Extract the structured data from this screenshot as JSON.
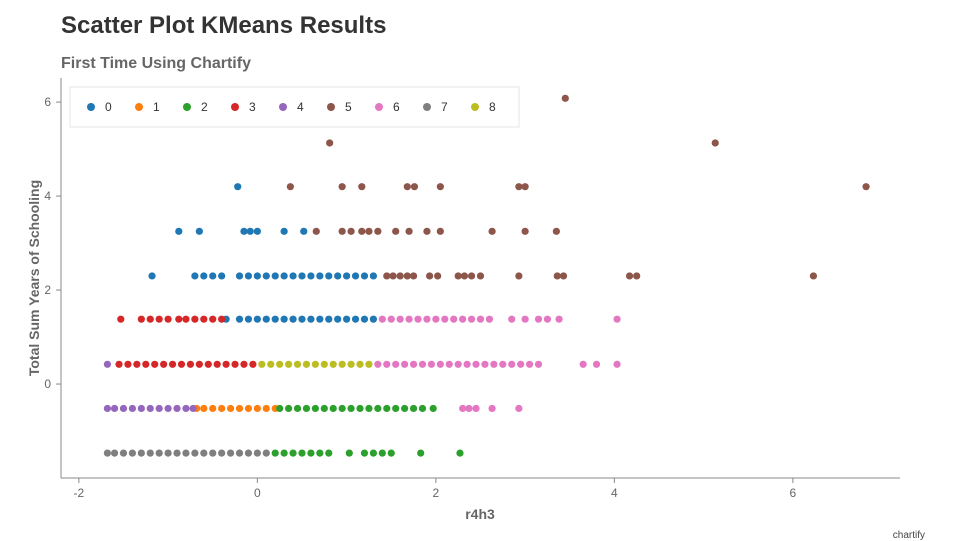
{
  "chart_data": {
    "type": "scatter",
    "title": "Scatter Plot KMeans Results",
    "subtitle": "First Time Using Chartify",
    "xlabel": "r4h3",
    "ylabel": "Total Sum Years of Schooling",
    "xlim": [
      -2.2,
      7.2
    ],
    "ylim": [
      -2.0,
      6.3
    ],
    "x_ticks": [
      "-2",
      "0",
      "2",
      "4",
      "6"
    ],
    "y_ticks": [
      "0",
      "2",
      "4",
      "6"
    ],
    "x_tick_values": [
      -2,
      0,
      2,
      4,
      6
    ],
    "y_tick_values": [
      0,
      2,
      4,
      6
    ],
    "grid": false,
    "legend_position": "top-left",
    "footer": "chartify",
    "series": [
      {
        "name": "0",
        "color": "#1f77b4",
        "points": [
          [
            -1.18,
            2.3
          ],
          [
            -0.7,
            2.3
          ],
          [
            -0.6,
            2.3
          ],
          [
            -0.5,
            2.3
          ],
          [
            -0.4,
            2.3
          ],
          [
            -0.2,
            2.3
          ],
          [
            -0.1,
            2.3
          ],
          [
            0.0,
            2.3
          ],
          [
            0.1,
            2.3
          ],
          [
            0.2,
            2.3
          ],
          [
            0.3,
            2.3
          ],
          [
            0.4,
            2.3
          ],
          [
            0.5,
            2.3
          ],
          [
            0.6,
            2.3
          ],
          [
            0.7,
            2.3
          ],
          [
            0.8,
            2.3
          ],
          [
            0.9,
            2.3
          ],
          [
            1.0,
            2.3
          ],
          [
            1.1,
            2.3
          ],
          [
            1.2,
            2.3
          ],
          [
            1.3,
            2.3
          ],
          [
            -0.35,
            1.38
          ],
          [
            -0.2,
            1.38
          ],
          [
            -0.1,
            1.38
          ],
          [
            0.0,
            1.38
          ],
          [
            0.1,
            1.38
          ],
          [
            0.2,
            1.38
          ],
          [
            0.3,
            1.38
          ],
          [
            0.4,
            1.38
          ],
          [
            0.5,
            1.38
          ],
          [
            0.6,
            1.38
          ],
          [
            0.7,
            1.38
          ],
          [
            0.8,
            1.38
          ],
          [
            0.9,
            1.38
          ],
          [
            1.0,
            1.38
          ],
          [
            1.1,
            1.38
          ],
          [
            1.2,
            1.38
          ],
          [
            1.3,
            1.38
          ],
          [
            -0.88,
            3.25
          ],
          [
            -0.65,
            3.25
          ],
          [
            -0.15,
            3.25
          ],
          [
            -0.08,
            3.25
          ],
          [
            0.0,
            3.25
          ],
          [
            0.3,
            3.25
          ],
          [
            0.52,
            3.25
          ],
          [
            -0.22,
            4.2
          ]
        ]
      },
      {
        "name": "1",
        "color": "#ff7f0e",
        "points": [
          [
            -0.68,
            -0.52
          ],
          [
            -0.6,
            -0.52
          ],
          [
            -0.5,
            -0.52
          ],
          [
            -0.4,
            -0.52
          ],
          [
            -0.3,
            -0.52
          ],
          [
            -0.2,
            -0.52
          ],
          [
            -0.1,
            -0.52
          ],
          [
            0.0,
            -0.52
          ],
          [
            0.1,
            -0.52
          ],
          [
            0.2,
            -0.52
          ]
        ]
      },
      {
        "name": "2",
        "color": "#2ca02c",
        "points": [
          [
            0.25,
            -0.52
          ],
          [
            0.35,
            -0.52
          ],
          [
            0.45,
            -0.52
          ],
          [
            0.55,
            -0.52
          ],
          [
            0.65,
            -0.52
          ],
          [
            0.75,
            -0.52
          ],
          [
            0.85,
            -0.52
          ],
          [
            0.95,
            -0.52
          ],
          [
            1.05,
            -0.52
          ],
          [
            1.15,
            -0.52
          ],
          [
            1.25,
            -0.52
          ],
          [
            1.35,
            -0.52
          ],
          [
            1.45,
            -0.52
          ],
          [
            1.55,
            -0.52
          ],
          [
            1.65,
            -0.52
          ],
          [
            1.75,
            -0.52
          ],
          [
            1.85,
            -0.52
          ],
          [
            1.97,
            -0.52
          ],
          [
            0.2,
            -1.47
          ],
          [
            0.3,
            -1.47
          ],
          [
            0.4,
            -1.47
          ],
          [
            0.5,
            -1.47
          ],
          [
            0.6,
            -1.47
          ],
          [
            0.7,
            -1.47
          ],
          [
            0.8,
            -1.47
          ],
          [
            1.03,
            -1.47
          ],
          [
            1.2,
            -1.47
          ],
          [
            1.3,
            -1.47
          ],
          [
            1.4,
            -1.47
          ],
          [
            1.5,
            -1.47
          ],
          [
            1.83,
            -1.47
          ],
          [
            2.27,
            -1.47
          ]
        ]
      },
      {
        "name": "3",
        "color": "#d62728",
        "points": [
          [
            -1.53,
            1.38
          ],
          [
            -1.3,
            1.38
          ],
          [
            -1.2,
            1.38
          ],
          [
            -1.1,
            1.38
          ],
          [
            -1.0,
            1.38
          ],
          [
            -0.88,
            1.38
          ],
          [
            -0.8,
            1.38
          ],
          [
            -0.7,
            1.38
          ],
          [
            -0.6,
            1.38
          ],
          [
            -0.5,
            1.38
          ],
          [
            -0.4,
            1.38
          ],
          [
            -1.55,
            0.42
          ],
          [
            -1.45,
            0.42
          ],
          [
            -1.35,
            0.42
          ],
          [
            -1.25,
            0.42
          ],
          [
            -1.15,
            0.42
          ],
          [
            -1.05,
            0.42
          ],
          [
            -0.95,
            0.42
          ],
          [
            -0.85,
            0.42
          ],
          [
            -0.75,
            0.42
          ],
          [
            -0.65,
            0.42
          ],
          [
            -0.55,
            0.42
          ],
          [
            -0.45,
            0.42
          ],
          [
            -0.35,
            0.42
          ],
          [
            -0.25,
            0.42
          ],
          [
            -0.15,
            0.42
          ],
          [
            -0.05,
            0.42
          ]
        ]
      },
      {
        "name": "4",
        "color": "#9467bd",
        "points": [
          [
            -1.68,
            0.42
          ],
          [
            -1.68,
            -0.52
          ],
          [
            -1.6,
            -0.52
          ],
          [
            -1.5,
            -0.52
          ],
          [
            -1.4,
            -0.52
          ],
          [
            -1.3,
            -0.52
          ],
          [
            -1.2,
            -0.52
          ],
          [
            -1.1,
            -0.52
          ],
          [
            -1.0,
            -0.52
          ],
          [
            -0.9,
            -0.52
          ],
          [
            -0.8,
            -0.52
          ],
          [
            -0.72,
            -0.52
          ]
        ]
      },
      {
        "name": "5",
        "color": "#8c564b",
        "points": [
          [
            3.45,
            6.08
          ],
          [
            0.81,
            5.13
          ],
          [
            5.13,
            5.13
          ],
          [
            0.37,
            4.2
          ],
          [
            0.95,
            4.2
          ],
          [
            1.17,
            4.2
          ],
          [
            1.68,
            4.2
          ],
          [
            1.76,
            4.2
          ],
          [
            2.05,
            4.2
          ],
          [
            2.93,
            4.2
          ],
          [
            3.0,
            4.2
          ],
          [
            6.82,
            4.2
          ],
          [
            0.66,
            3.25
          ],
          [
            0.95,
            3.25
          ],
          [
            1.05,
            3.25
          ],
          [
            1.17,
            3.25
          ],
          [
            1.25,
            3.25
          ],
          [
            1.35,
            3.25
          ],
          [
            1.55,
            3.25
          ],
          [
            1.7,
            3.25
          ],
          [
            1.9,
            3.25
          ],
          [
            2.05,
            3.25
          ],
          [
            2.63,
            3.25
          ],
          [
            3.0,
            3.25
          ],
          [
            3.35,
            3.25
          ],
          [
            1.45,
            2.3
          ],
          [
            1.52,
            2.3
          ],
          [
            1.6,
            2.3
          ],
          [
            1.68,
            2.3
          ],
          [
            1.75,
            2.3
          ],
          [
            1.93,
            2.3
          ],
          [
            2.02,
            2.3
          ],
          [
            2.25,
            2.3
          ],
          [
            2.32,
            2.3
          ],
          [
            2.4,
            2.3
          ],
          [
            2.5,
            2.3
          ],
          [
            2.93,
            2.3
          ],
          [
            3.36,
            2.3
          ],
          [
            3.43,
            2.3
          ],
          [
            4.17,
            2.3
          ],
          [
            4.25,
            2.3
          ],
          [
            6.23,
            2.3
          ]
        ]
      },
      {
        "name": "6",
        "color": "#e377c2",
        "points": [
          [
            1.4,
            1.38
          ],
          [
            1.5,
            1.38
          ],
          [
            1.6,
            1.38
          ],
          [
            1.7,
            1.38
          ],
          [
            1.8,
            1.38
          ],
          [
            1.9,
            1.38
          ],
          [
            2.0,
            1.38
          ],
          [
            2.1,
            1.38
          ],
          [
            2.2,
            1.38
          ],
          [
            2.3,
            1.38
          ],
          [
            2.4,
            1.38
          ],
          [
            2.5,
            1.38
          ],
          [
            2.6,
            1.38
          ],
          [
            2.85,
            1.38
          ],
          [
            3.0,
            1.38
          ],
          [
            3.15,
            1.38
          ],
          [
            3.25,
            1.38
          ],
          [
            3.38,
            1.38
          ],
          [
            4.03,
            1.38
          ],
          [
            1.35,
            0.42
          ],
          [
            1.45,
            0.42
          ],
          [
            1.55,
            0.42
          ],
          [
            1.65,
            0.42
          ],
          [
            1.75,
            0.42
          ],
          [
            1.85,
            0.42
          ],
          [
            1.95,
            0.42
          ],
          [
            2.05,
            0.42
          ],
          [
            2.15,
            0.42
          ],
          [
            2.25,
            0.42
          ],
          [
            2.35,
            0.42
          ],
          [
            2.45,
            0.42
          ],
          [
            2.55,
            0.42
          ],
          [
            2.65,
            0.42
          ],
          [
            2.75,
            0.42
          ],
          [
            2.85,
            0.42
          ],
          [
            2.95,
            0.42
          ],
          [
            3.05,
            0.42
          ],
          [
            3.15,
            0.42
          ],
          [
            3.65,
            0.42
          ],
          [
            3.8,
            0.42
          ],
          [
            4.03,
            0.42
          ],
          [
            2.3,
            -0.52
          ],
          [
            2.37,
            -0.52
          ],
          [
            2.45,
            -0.52
          ],
          [
            2.63,
            -0.52
          ],
          [
            2.93,
            -0.52
          ]
        ]
      },
      {
        "name": "7",
        "color": "#7f7f7f",
        "points": [
          [
            -1.68,
            -1.47
          ],
          [
            -1.6,
            -1.47
          ],
          [
            -1.5,
            -1.47
          ],
          [
            -1.4,
            -1.47
          ],
          [
            -1.3,
            -1.47
          ],
          [
            -1.2,
            -1.47
          ],
          [
            -1.1,
            -1.47
          ],
          [
            -1.0,
            -1.47
          ],
          [
            -0.9,
            -1.47
          ],
          [
            -0.8,
            -1.47
          ],
          [
            -0.7,
            -1.47
          ],
          [
            -0.6,
            -1.47
          ],
          [
            -0.5,
            -1.47
          ],
          [
            -0.4,
            -1.47
          ],
          [
            -0.3,
            -1.47
          ],
          [
            -0.2,
            -1.47
          ],
          [
            -0.1,
            -1.47
          ],
          [
            0.0,
            -1.47
          ],
          [
            0.1,
            -1.47
          ]
        ]
      },
      {
        "name": "8",
        "color": "#bcbd22",
        "points": [
          [
            0.05,
            0.42
          ],
          [
            0.15,
            0.42
          ],
          [
            0.25,
            0.42
          ],
          [
            0.35,
            0.42
          ],
          [
            0.45,
            0.42
          ],
          [
            0.55,
            0.42
          ],
          [
            0.65,
            0.42
          ],
          [
            0.75,
            0.42
          ],
          [
            0.85,
            0.42
          ],
          [
            0.95,
            0.42
          ],
          [
            1.05,
            0.42
          ],
          [
            1.15,
            0.42
          ],
          [
            1.25,
            0.42
          ]
        ]
      }
    ]
  }
}
